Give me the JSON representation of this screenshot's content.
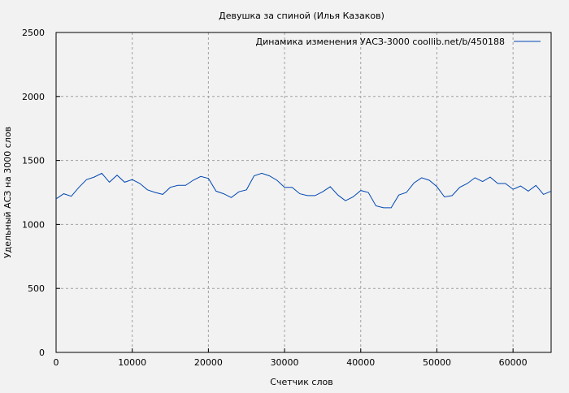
{
  "chart_data": {
    "type": "line",
    "title": "Девушка за спиной (Илья Казаков)",
    "xlabel": "Счетчик слов",
    "ylabel": "Удельный АСЗ на 3000 слов",
    "xlim": [
      0,
      65000
    ],
    "ylim": [
      0,
      2500
    ],
    "xticks": [
      0,
      10000,
      20000,
      30000,
      40000,
      50000,
      60000
    ],
    "yticks": [
      0,
      500,
      1000,
      1500,
      2000,
      2500
    ],
    "grid": true,
    "legend_position": "top-right",
    "series": [
      {
        "name": "Динамика изменения УАСЗ-3000  coollib.net/b/450188",
        "color": "#0047b3",
        "x": [
          0,
          1000,
          2000,
          3000,
          4000,
          5000,
          6000,
          7000,
          8000,
          9000,
          10000,
          11000,
          12000,
          13000,
          14000,
          15000,
          16000,
          17000,
          18000,
          19000,
          20000,
          21000,
          22000,
          23000,
          24000,
          25000,
          26000,
          27000,
          28000,
          29000,
          30000,
          31000,
          32000,
          33000,
          34000,
          35000,
          36000,
          37000,
          38000,
          39000,
          40000,
          41000,
          42000,
          43000,
          44000,
          45000,
          46000,
          47000,
          48000,
          49000,
          50000,
          51000,
          52000,
          53000,
          54000,
          55000,
          56000,
          57000,
          58000,
          59000,
          60000,
          61000,
          62000,
          63000,
          64000,
          65000
        ],
        "y": [
          1200,
          1240,
          1220,
          1290,
          1350,
          1370,
          1400,
          1330,
          1385,
          1330,
          1350,
          1320,
          1270,
          1250,
          1235,
          1290,
          1305,
          1305,
          1345,
          1375,
          1360,
          1260,
          1240,
          1210,
          1255,
          1270,
          1380,
          1400,
          1380,
          1345,
          1290,
          1290,
          1240,
          1225,
          1225,
          1255,
          1295,
          1230,
          1185,
          1215,
          1265,
          1250,
          1145,
          1130,
          1130,
          1230,
          1250,
          1325,
          1365,
          1345,
          1295,
          1215,
          1225,
          1290,
          1320,
          1365,
          1335,
          1370,
          1320,
          1320,
          1275,
          1300,
          1260,
          1305,
          1235,
          1260
        ]
      }
    ]
  }
}
